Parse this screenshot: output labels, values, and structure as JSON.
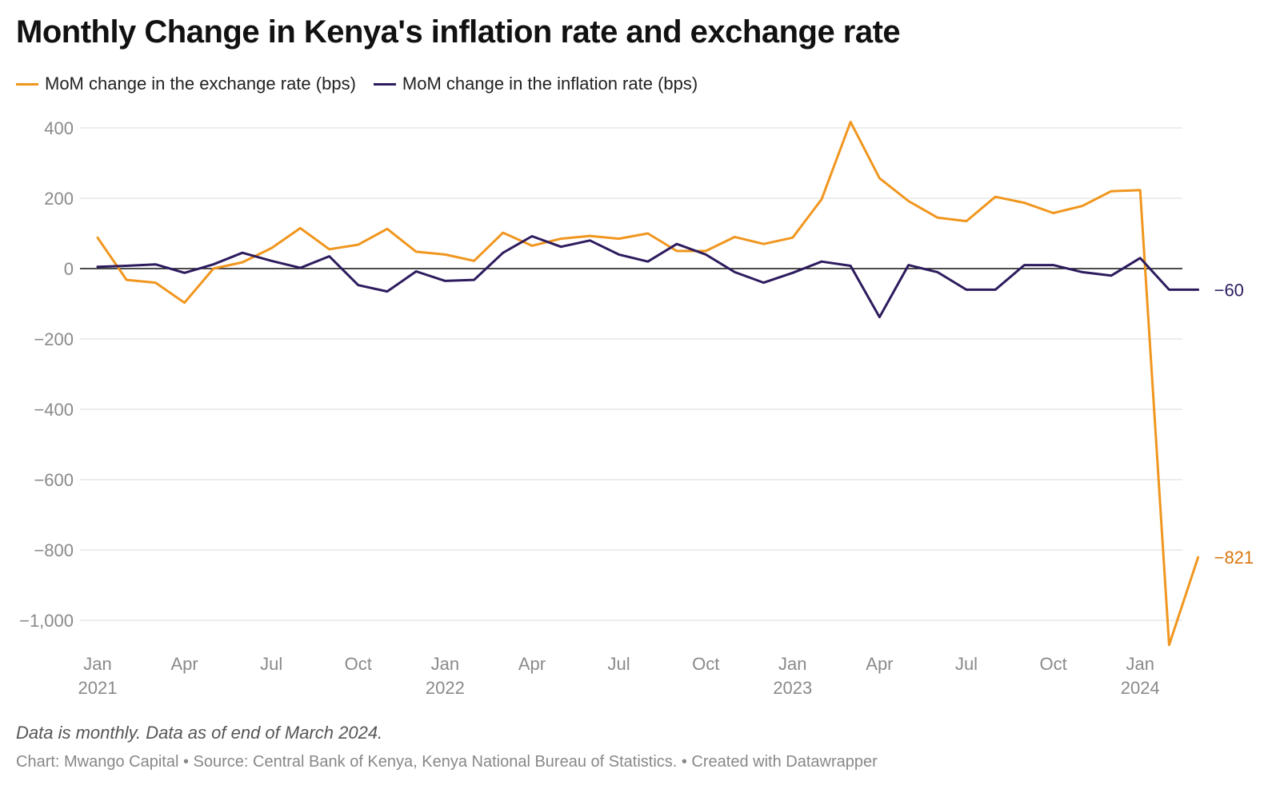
{
  "title": "Monthly Change in Kenya's inflation rate and exchange rate",
  "legend": [
    {
      "label": "MoM change in the exchange rate (bps)",
      "color": "#f0961e"
    },
    {
      "label": "MoM change in the inflation rate (bps)",
      "color": "#2d1b5e"
    }
  ],
  "note": "Data is monthly. Data as of end of March 2024.",
  "source": "Chart: Mwango Capital • Source: Central Bank of Kenya, Kenya National Bureau of Statistics. • Created with Datawrapper",
  "chart_data": {
    "type": "line",
    "title": "Monthly Change in Kenya's inflation rate and exchange rate",
    "ylim": [
      -1080,
      420
    ],
    "y_ticks": [
      400,
      200,
      0,
      -200,
      -400,
      -600,
      -800,
      -1000
    ],
    "y_tick_labels": [
      "400",
      "200",
      "0",
      "−200",
      "−400",
      "−600",
      "−800",
      "−1,000"
    ],
    "x_ticks": [
      {
        "index": 0,
        "month": "Jan",
        "year": "2021"
      },
      {
        "index": 3,
        "month": "Apr",
        "year": ""
      },
      {
        "index": 6,
        "month": "Jul",
        "year": ""
      },
      {
        "index": 9,
        "month": "Oct",
        "year": ""
      },
      {
        "index": 12,
        "month": "Jan",
        "year": "2022"
      },
      {
        "index": 15,
        "month": "Apr",
        "year": ""
      },
      {
        "index": 18,
        "month": "Jul",
        "year": ""
      },
      {
        "index": 21,
        "month": "Oct",
        "year": ""
      },
      {
        "index": 24,
        "month": "Jan",
        "year": "2023"
      },
      {
        "index": 27,
        "month": "Apr",
        "year": ""
      },
      {
        "index": 30,
        "month": "Jul",
        "year": ""
      },
      {
        "index": 33,
        "month": "Oct",
        "year": ""
      },
      {
        "index": 36,
        "month": "Jan",
        "year": "2024"
      }
    ],
    "x": [
      "Jan 2021",
      "Feb 2021",
      "Mar 2021",
      "Apr 2021",
      "May 2021",
      "Jun 2021",
      "Jul 2021",
      "Aug 2021",
      "Sep 2021",
      "Oct 2021",
      "Nov 2021",
      "Dec 2021",
      "Jan 2022",
      "Feb 2022",
      "Mar 2022",
      "Apr 2022",
      "May 2022",
      "Jun 2022",
      "Jul 2022",
      "Aug 2022",
      "Sep 2022",
      "Oct 2022",
      "Nov 2022",
      "Dec 2022",
      "Jan 2023",
      "Feb 2023",
      "Mar 2023",
      "Apr 2023",
      "May 2023",
      "Jun 2023",
      "Jul 2023",
      "Aug 2023",
      "Sep 2023",
      "Oct 2023",
      "Nov 2023",
      "Dec 2023",
      "Jan 2024",
      "Feb 2024",
      "Mar 2024"
    ],
    "series": [
      {
        "name": "MoM change in the exchange rate (bps)",
        "color": "#f0961e",
        "end_label": "−821",
        "end_label_color": "#d9760f",
        "values": [
          88,
          -32,
          -40,
          -97,
          0,
          18,
          58,
          115,
          55,
          68,
          113,
          48,
          40,
          22,
          102,
          65,
          85,
          93,
          85,
          100,
          50,
          50,
          90,
          70,
          88,
          197,
          417,
          257,
          192,
          145,
          135,
          204,
          187,
          158,
          178,
          220,
          223,
          -1070,
          -821
        ]
      },
      {
        "name": "MoM change in the inflation rate (bps)",
        "color": "#2d1b5e",
        "end_label": "−60",
        "end_label_color": "#2d1b5e",
        "values": [
          5,
          8,
          12,
          -12,
          12,
          45,
          22,
          2,
          35,
          -47,
          -65,
          -8,
          -35,
          -32,
          45,
          92,
          62,
          80,
          40,
          20,
          70,
          40,
          -10,
          -40,
          -12,
          20,
          8,
          -138,
          10,
          -10,
          -60,
          -60,
          10,
          10,
          -10,
          -20,
          30,
          -60,
          -60
        ]
      }
    ]
  }
}
